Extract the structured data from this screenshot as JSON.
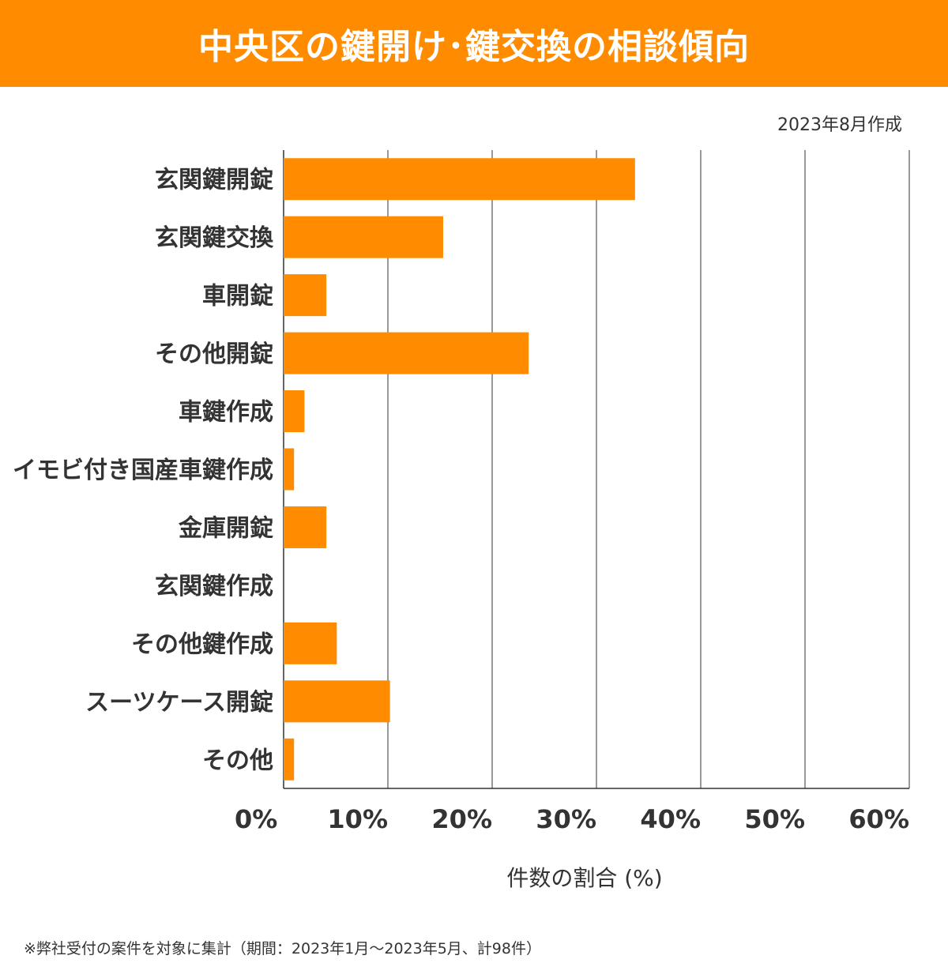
{
  "header": {
    "title": "中央区の鍵開け･鍵交換の相談傾向"
  },
  "date_note": "2023年8月作成",
  "footnote": "※弊社受付の案件を対象に集計（期間：2023年1月～2023年5月、計98件）",
  "chart_data": {
    "type": "bar",
    "orientation": "horizontal",
    "title": "中央区の鍵開け･鍵交換の相談傾向",
    "xlabel": "件数の割合 (%)",
    "ylabel": "",
    "xlim": [
      0,
      60
    ],
    "xticks": [
      "0%",
      "10%",
      "20%",
      "30%",
      "40%",
      "50%",
      "60%"
    ],
    "grid": "vertical",
    "bar_color": "#ff8c00",
    "categories": [
      "玄関鍵開錠",
      "玄関鍵交換",
      "車開錠",
      "その他開錠",
      "車鍵作成",
      "イモビ付き国産車鍵作成",
      "金庫開錠",
      "玄関鍵作成",
      "その他鍵作成",
      "スーツケース開錠",
      "その他"
    ],
    "values": [
      33.7,
      15.3,
      4.1,
      23.5,
      2.0,
      1.0,
      4.1,
      0,
      5.1,
      10.2,
      1.0
    ]
  }
}
